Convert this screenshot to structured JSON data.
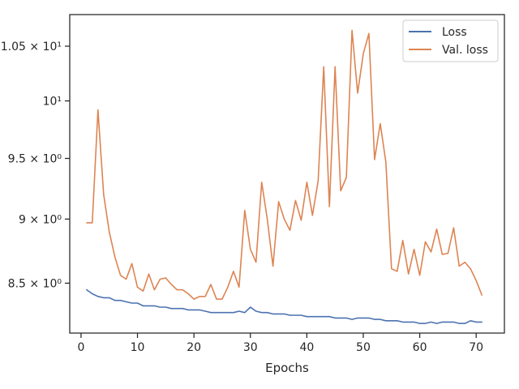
{
  "chart_data": {
    "type": "line",
    "title": "",
    "xlabel": "Epochs",
    "ylabel": "",
    "yscale": "log",
    "grid": false,
    "legend_position": "top-right",
    "xlim": [
      -2,
      75
    ],
    "ylim": [
      8.13,
      10.8
    ],
    "xticks": [
      {
        "value": 0,
        "label": "0"
      },
      {
        "value": 10,
        "label": "10"
      },
      {
        "value": 20,
        "label": "20"
      },
      {
        "value": 30,
        "label": "30"
      },
      {
        "value": 40,
        "label": "40"
      },
      {
        "value": 50,
        "label": "50"
      },
      {
        "value": 60,
        "label": "60"
      },
      {
        "value": 70,
        "label": "70"
      }
    ],
    "yticks": [
      {
        "value": 8.5,
        "label": "8.5 × 10⁰"
      },
      {
        "value": 9.0,
        "label": "9 × 10⁰"
      },
      {
        "value": 9.5,
        "label": "9.5 × 10⁰"
      },
      {
        "value": 10.0,
        "label": "10¹"
      },
      {
        "value": 10.5,
        "label": "1.05 × 10¹"
      }
    ],
    "x": [
      1,
      2,
      3,
      4,
      5,
      6,
      7,
      8,
      9,
      10,
      11,
      12,
      13,
      14,
      15,
      16,
      17,
      18,
      19,
      20,
      21,
      22,
      23,
      24,
      25,
      26,
      27,
      28,
      29,
      30,
      31,
      32,
      33,
      34,
      35,
      36,
      37,
      38,
      39,
      40,
      41,
      42,
      43,
      44,
      45,
      46,
      47,
      48,
      49,
      50,
      51,
      52,
      53,
      54,
      55,
      56,
      57,
      58,
      59,
      60,
      61,
      62,
      63,
      64,
      65,
      66,
      67,
      68,
      69,
      70,
      71
    ],
    "series": [
      {
        "name": "Loss",
        "color": "#4c72b0",
        "values": [
          8.45,
          8.42,
          8.4,
          8.39,
          8.39,
          8.37,
          8.37,
          8.36,
          8.35,
          8.35,
          8.33,
          8.33,
          8.33,
          8.32,
          8.32,
          8.31,
          8.31,
          8.31,
          8.3,
          8.3,
          8.3,
          8.29,
          8.28,
          8.28,
          8.28,
          8.28,
          8.28,
          8.29,
          8.28,
          8.32,
          8.29,
          8.28,
          8.28,
          8.27,
          8.27,
          8.27,
          8.26,
          8.26,
          8.26,
          8.25,
          8.25,
          8.25,
          8.25,
          8.25,
          8.24,
          8.24,
          8.24,
          8.23,
          8.24,
          8.24,
          8.24,
          8.23,
          8.23,
          8.22,
          8.22,
          8.22,
          8.21,
          8.21,
          8.21,
          8.2,
          8.2,
          8.21,
          8.2,
          8.21,
          8.21,
          8.21,
          8.2,
          8.2,
          8.22,
          8.21,
          8.21
        ]
      },
      {
        "name": "Val. loss",
        "color": "#dd8452",
        "values": [
          8.97,
          8.97,
          9.92,
          9.2,
          8.9,
          8.7,
          8.56,
          8.53,
          8.65,
          8.47,
          8.44,
          8.57,
          8.45,
          8.53,
          8.54,
          8.49,
          8.45,
          8.45,
          8.42,
          8.38,
          8.4,
          8.4,
          8.49,
          8.38,
          8.38,
          8.47,
          8.59,
          8.47,
          9.07,
          8.76,
          8.66,
          9.3,
          9.0,
          8.63,
          9.14,
          9.0,
          8.91,
          9.15,
          8.99,
          9.3,
          9.03,
          9.31,
          10.31,
          9.1,
          10.31,
          9.23,
          9.34,
          10.65,
          10.07,
          10.43,
          10.62,
          9.49,
          9.8,
          9.47,
          8.61,
          8.59,
          8.83,
          8.57,
          8.76,
          8.56,
          8.82,
          8.74,
          8.92,
          8.72,
          8.73,
          8.93,
          8.63,
          8.66,
          8.61,
          8.52,
          8.41
        ]
      }
    ]
  }
}
